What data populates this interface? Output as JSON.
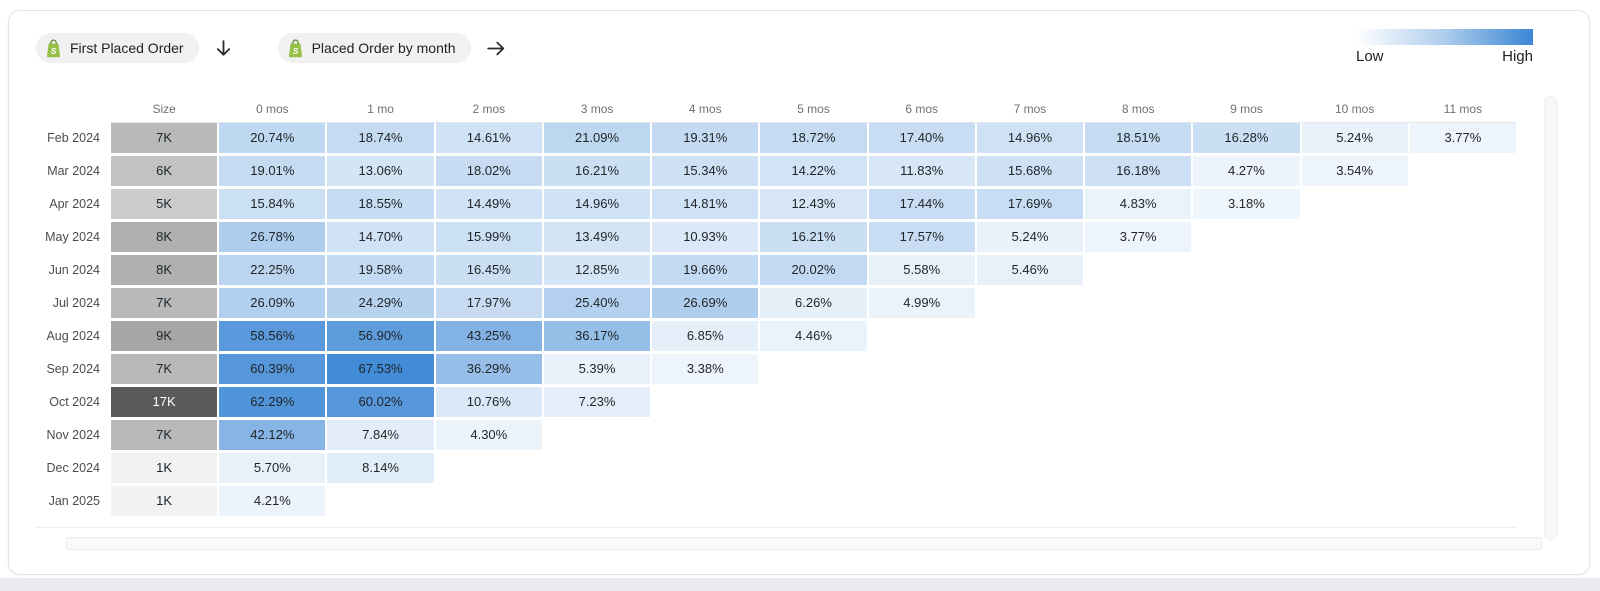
{
  "header": {
    "pill1_label": "First Placed Order",
    "pill2_label": "Placed Order by month",
    "pill1_icon": "shopify-icon",
    "pill2_icon": "shopify-icon",
    "shopify_green": "#95bf47",
    "shopify_green_dark": "#5e8e3e"
  },
  "legend": {
    "low_label": "Low",
    "high_label": "High"
  },
  "chart_data": {
    "type": "heatmap",
    "size_header": "Size",
    "column_headers": [
      "0 mos",
      "1 mo",
      "2 mos",
      "3 mos",
      "4 mos",
      "5 mos",
      "6 mos",
      "7 mos",
      "8 mos",
      "9 mos",
      "10 mos",
      "11 mos"
    ],
    "cohorts": [
      {
        "label": "Feb 2024",
        "size": "7K",
        "size_value": 7,
        "values": [
          20.74,
          18.74,
          14.61,
          21.09,
          19.31,
          18.72,
          17.4,
          14.96,
          18.51,
          16.28,
          5.24,
          3.77
        ]
      },
      {
        "label": "Mar 2024",
        "size": "6K",
        "size_value": 6,
        "values": [
          19.01,
          13.06,
          18.02,
          16.21,
          15.34,
          14.22,
          11.83,
          15.68,
          16.18,
          4.27,
          3.54
        ]
      },
      {
        "label": "Apr 2024",
        "size": "5K",
        "size_value": 5,
        "values": [
          15.84,
          18.55,
          14.49,
          14.96,
          14.81,
          12.43,
          17.44,
          17.69,
          4.83,
          3.18
        ]
      },
      {
        "label": "May 2024",
        "size": "8K",
        "size_value": 8,
        "values": [
          26.78,
          14.7,
          15.99,
          13.49,
          10.93,
          16.21,
          17.57,
          5.24,
          3.77
        ]
      },
      {
        "label": "Jun 2024",
        "size": "8K",
        "size_value": 8,
        "values": [
          22.25,
          19.58,
          16.45,
          12.85,
          19.66,
          20.02,
          5.58,
          5.46
        ]
      },
      {
        "label": "Jul 2024",
        "size": "7K",
        "size_value": 7,
        "values": [
          26.09,
          24.29,
          17.97,
          25.4,
          26.69,
          6.26,
          4.99
        ]
      },
      {
        "label": "Aug 2024",
        "size": "9K",
        "size_value": 9,
        "values": [
          58.56,
          56.9,
          43.25,
          36.17,
          6.85,
          4.46
        ]
      },
      {
        "label": "Sep 2024",
        "size": "7K",
        "size_value": 7,
        "values": [
          60.39,
          67.53,
          36.29,
          5.39,
          3.38
        ]
      },
      {
        "label": "Oct 2024",
        "size": "17K",
        "size_value": 17,
        "values": [
          62.29,
          60.02,
          10.76,
          7.23
        ]
      },
      {
        "label": "Nov 2024",
        "size": "7K",
        "size_value": 7,
        "values": [
          42.12,
          7.84,
          4.3
        ]
      },
      {
        "label": "Dec 2024",
        "size": "1K",
        "size_value": 1,
        "values": [
          5.7,
          8.14
        ]
      },
      {
        "label": "Jan 2025",
        "size": "1K",
        "size_value": 1,
        "values": [
          4.21
        ]
      }
    ],
    "color_scale": {
      "low": "#f7fafd",
      "high": "#3b87d5",
      "domain_max": 70
    },
    "size_scale": {
      "low": "#f1f2f3",
      "high": "#5a5a5a",
      "domain_min": 1,
      "domain_max": 17
    },
    "legend_position": "top-right"
  }
}
